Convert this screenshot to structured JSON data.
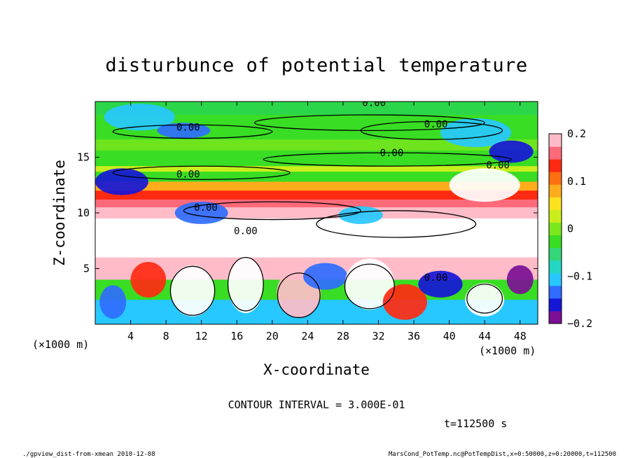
{
  "chart_data": {
    "type": "heatmap",
    "title": "disturbunce of potential temperature",
    "xlabel": "X-coordinate",
    "ylabel": "Z-coordinate",
    "x_unit_left": "(×1000 m)",
    "x_unit_right": "(×1000 m)",
    "xlim": [
      0,
      50
    ],
    "ylim": [
      0,
      20
    ],
    "x_ticks": [
      4,
      8,
      12,
      16,
      20,
      24,
      28,
      32,
      36,
      40,
      44,
      48
    ],
    "y_ticks": [
      5,
      10,
      15
    ],
    "colorbar": {
      "range": [
        -0.2,
        0.2
      ],
      "ticks": [
        0.2,
        0.1,
        0,
        -0.1,
        -0.2
      ],
      "tick_labels": [
        "0.2",
        "0.1",
        "0",
        "−0.1",
        "−0.2"
      ],
      "colors": [
        "#7b0f95",
        "#1616d8",
        "#2f6cff",
        "#27c8ff",
        "#22d8c4",
        "#34d67a",
        "#39dd23",
        "#7ae81d",
        "#c9ee1c",
        "#fde21e",
        "#ffac1c",
        "#ff6f10",
        "#ff2a12",
        "#ff6a7a",
        "#ffbcc8"
      ]
    },
    "contour_labels": [
      {
        "x": 31.5,
        "z": 19.9,
        "text": "0.00"
      },
      {
        "x": 38.5,
        "z": 18.0,
        "text": "0.00"
      },
      {
        "x": 10.5,
        "z": 17.7,
        "text": "0.00"
      },
      {
        "x": 33.5,
        "z": 15.4,
        "text": "0.00"
      },
      {
        "x": 45.5,
        "z": 14.3,
        "text": "0.00"
      },
      {
        "x": 10.5,
        "z": 13.5,
        "text": "0.00"
      },
      {
        "x": 12.5,
        "z": 10.5,
        "text": "0.00"
      },
      {
        "x": 17.0,
        "z": 8.4,
        "text": "0.00"
      },
      {
        "x": 38.5,
        "z": 4.2,
        "text": "0.00"
      }
    ],
    "bands": [
      {
        "z0": 18.8,
        "z1": 20.0,
        "color": "#2bd64a"
      },
      {
        "z0": 16.6,
        "z1": 18.8,
        "color": "#39dd23"
      },
      {
        "z0": 15.6,
        "z1": 16.6,
        "color": "#6ee41e"
      },
      {
        "z0": 14.2,
        "z1": 15.6,
        "color": "#39dd23"
      },
      {
        "z0": 13.7,
        "z1": 14.2,
        "color": "#c9ee1c"
      },
      {
        "z0": 12.8,
        "z1": 13.7,
        "color": "#39dd23"
      },
      {
        "z0": 12.0,
        "z1": 12.8,
        "color": "#ffac1c"
      },
      {
        "z0": 11.2,
        "z1": 12.0,
        "color": "#ff2a12"
      },
      {
        "z0": 10.5,
        "z1": 11.2,
        "color": "#ff6a7a"
      },
      {
        "z0": 9.5,
        "z1": 10.5,
        "color": "#ffbcc8"
      },
      {
        "z0": 6.0,
        "z1": 9.5,
        "color": "#ffffff"
      },
      {
        "z0": 4.0,
        "z1": 6.0,
        "color": "#ffbcc8"
      },
      {
        "z0": 2.2,
        "z1": 4.0,
        "color": "#39dd23"
      },
      {
        "z0": 0.0,
        "z1": 2.2,
        "color": "#27c8ff"
      }
    ],
    "blobs": [
      {
        "x": 5,
        "z": 18.6,
        "rx": 4,
        "rz": 1.2,
        "color": "#27c8ff"
      },
      {
        "x": 10,
        "z": 17.4,
        "rx": 3,
        "rz": 0.7,
        "color": "#2f6cff"
      },
      {
        "x": 43,
        "z": 17.2,
        "rx": 4,
        "rz": 1.3,
        "color": "#27c8ff"
      },
      {
        "x": 47,
        "z": 15.5,
        "rx": 2.5,
        "rz": 1.0,
        "color": "#1616d8"
      },
      {
        "x": 3,
        "z": 12.8,
        "rx": 3,
        "rz": 1.2,
        "color": "#1616d8"
      },
      {
        "x": 44,
        "z": 12.5,
        "rx": 4,
        "rz": 1.5,
        "color": "#ffffff"
      },
      {
        "x": 12,
        "z": 10.0,
        "rx": 3,
        "rz": 1.0,
        "color": "#2f6cff"
      },
      {
        "x": 30,
        "z": 9.8,
        "rx": 2.5,
        "rz": 0.8,
        "color": "#27c8ff"
      },
      {
        "x": 6,
        "z": 4.0,
        "rx": 2,
        "rz": 1.6,
        "color": "#ff2a12"
      },
      {
        "x": 11,
        "z": 3.0,
        "rx": 2.5,
        "rz": 2.3,
        "color": "#ffffff"
      },
      {
        "x": 17,
        "z": 3.5,
        "rx": 2.0,
        "rz": 2.5,
        "color": "#ffffff"
      },
      {
        "x": 23,
        "z": 2.8,
        "rx": 2.5,
        "rz": 2.2,
        "color": "#ffbcc8"
      },
      {
        "x": 26,
        "z": 4.3,
        "rx": 2.5,
        "rz": 1.2,
        "color": "#2f6cff"
      },
      {
        "x": 31,
        "z": 3.6,
        "rx": 2.8,
        "rz": 2.3,
        "color": "#ffffff"
      },
      {
        "x": 35,
        "z": 2.0,
        "rx": 2.5,
        "rz": 1.6,
        "color": "#ff2a12"
      },
      {
        "x": 39,
        "z": 3.6,
        "rx": 2.5,
        "rz": 1.2,
        "color": "#1616d8"
      },
      {
        "x": 44,
        "z": 2.2,
        "rx": 2.2,
        "rz": 1.5,
        "color": "#ffffff"
      },
      {
        "x": 48,
        "z": 4.0,
        "rx": 1.5,
        "rz": 1.3,
        "color": "#7b0f95"
      },
      {
        "x": 2,
        "z": 2.0,
        "rx": 1.5,
        "rz": 1.5,
        "color": "#2f6cff"
      }
    ],
    "contours": [
      {
        "x": 31,
        "z": 18.1,
        "rx": 13,
        "rz": 0.7
      },
      {
        "x": 38,
        "z": 17.4,
        "rx": 8,
        "rz": 0.8
      },
      {
        "x": 11,
        "z": 17.3,
        "rx": 9,
        "rz": 0.6
      },
      {
        "x": 33,
        "z": 14.8,
        "rx": 14,
        "rz": 0.6
      },
      {
        "x": 12,
        "z": 13.6,
        "rx": 10,
        "rz": 0.6
      },
      {
        "x": 20,
        "z": 10.2,
        "rx": 10,
        "rz": 0.8
      },
      {
        "x": 34,
        "z": 9.0,
        "rx": 9,
        "rz": 1.2
      },
      {
        "x": 11,
        "z": 3.0,
        "rx": 2.5,
        "rz": 2.2
      },
      {
        "x": 17,
        "z": 3.6,
        "rx": 2.0,
        "rz": 2.4
      },
      {
        "x": 31,
        "z": 3.4,
        "rx": 2.8,
        "rz": 2.0
      },
      {
        "x": 23,
        "z": 2.6,
        "rx": 2.4,
        "rz": 2.0
      },
      {
        "x": 44,
        "z": 2.3,
        "rx": 2.0,
        "rz": 1.3
      }
    ]
  },
  "annotations": {
    "contour_interval": "CONTOUR INTERVAL = 3.000E-01",
    "time": "t=112500 s"
  },
  "footer": {
    "left": "./gpview_dist-from-xmean  2010-12-08",
    "right": "MarsCond_PotTemp.nc@PotTempDist,x=0:50000,z=0:20000,t=112500"
  }
}
